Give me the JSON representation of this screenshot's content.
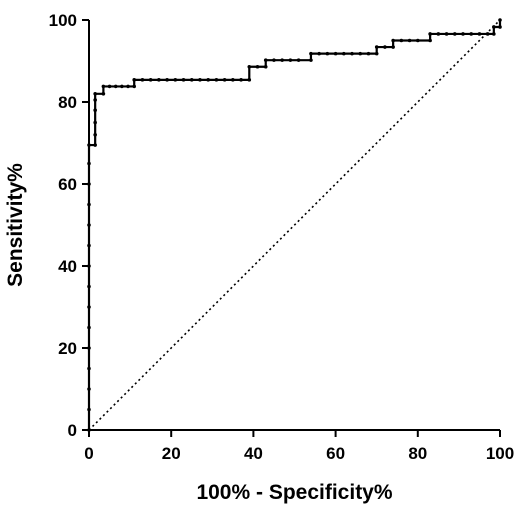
{
  "chart_data": {
    "type": "line",
    "title": "",
    "xlabel": "100% - Specificity%",
    "ylabel": "Sensitivity%",
    "xlim": [
      0,
      100
    ],
    "ylim": [
      0,
      100
    ],
    "xticks": [
      0,
      20,
      40,
      60,
      80,
      100
    ],
    "yticks": [
      0,
      20,
      40,
      60,
      80,
      100
    ],
    "grid": false,
    "legend": "none",
    "series": [
      {
        "style": "step line with point markers",
        "color": "#000000",
        "points": [
          [
            0,
            0
          ],
          [
            0,
            5
          ],
          [
            0,
            10
          ],
          [
            0,
            15
          ],
          [
            0,
            20
          ],
          [
            0,
            25
          ],
          [
            0,
            30
          ],
          [
            0,
            35
          ],
          [
            0,
            40
          ],
          [
            0,
            45
          ],
          [
            0,
            50
          ],
          [
            0,
            55
          ],
          [
            0,
            60
          ],
          [
            0,
            65
          ],
          [
            0,
            69.5
          ],
          [
            1.5,
            69.5
          ],
          [
            1.5,
            72
          ],
          [
            1.5,
            75
          ],
          [
            1.5,
            78
          ],
          [
            1.5,
            80.5
          ],
          [
            1.5,
            82
          ],
          [
            3.5,
            82
          ],
          [
            3.5,
            83.8
          ],
          [
            5,
            83.8
          ],
          [
            6.5,
            83.8
          ],
          [
            8,
            83.8
          ],
          [
            9.5,
            83.8
          ],
          [
            11,
            83.8
          ],
          [
            11,
            85.4
          ],
          [
            13,
            85.4
          ],
          [
            15,
            85.4
          ],
          [
            17,
            85.4
          ],
          [
            19,
            85.4
          ],
          [
            21,
            85.4
          ],
          [
            23,
            85.4
          ],
          [
            25,
            85.4
          ],
          [
            27,
            85.4
          ],
          [
            29,
            85.4
          ],
          [
            31,
            85.4
          ],
          [
            33,
            85.4
          ],
          [
            35,
            85.4
          ],
          [
            37,
            85.4
          ],
          [
            39,
            85.4
          ],
          [
            39,
            88.6
          ],
          [
            41,
            88.6
          ],
          [
            43,
            88.6
          ],
          [
            43,
            90.2
          ],
          [
            45,
            90.2
          ],
          [
            47,
            90.2
          ],
          [
            49,
            90.2
          ],
          [
            51,
            90.2
          ],
          [
            54,
            90.2
          ],
          [
            54,
            91.8
          ],
          [
            56,
            91.8
          ],
          [
            58,
            91.8
          ],
          [
            60,
            91.8
          ],
          [
            62,
            91.8
          ],
          [
            64,
            91.8
          ],
          [
            66,
            91.8
          ],
          [
            68,
            91.8
          ],
          [
            70,
            91.8
          ],
          [
            70,
            93.4
          ],
          [
            72,
            93.4
          ],
          [
            74,
            93.4
          ],
          [
            74,
            95
          ],
          [
            76,
            95
          ],
          [
            78,
            95
          ],
          [
            80,
            95
          ],
          [
            83,
            95
          ],
          [
            83,
            96.6
          ],
          [
            85,
            96.6
          ],
          [
            87,
            96.6
          ],
          [
            89,
            96.6
          ],
          [
            91,
            96.6
          ],
          [
            93,
            96.6
          ],
          [
            95,
            96.6
          ],
          [
            97,
            96.6
          ],
          [
            98.5,
            96.6
          ],
          [
            98.5,
            98.3
          ],
          [
            100,
            98.3
          ],
          [
            100,
            100
          ]
        ]
      },
      {
        "style": "dotted reference line",
        "color": "#000000",
        "points": [
          [
            0,
            0
          ],
          [
            100,
            100
          ]
        ]
      }
    ]
  }
}
